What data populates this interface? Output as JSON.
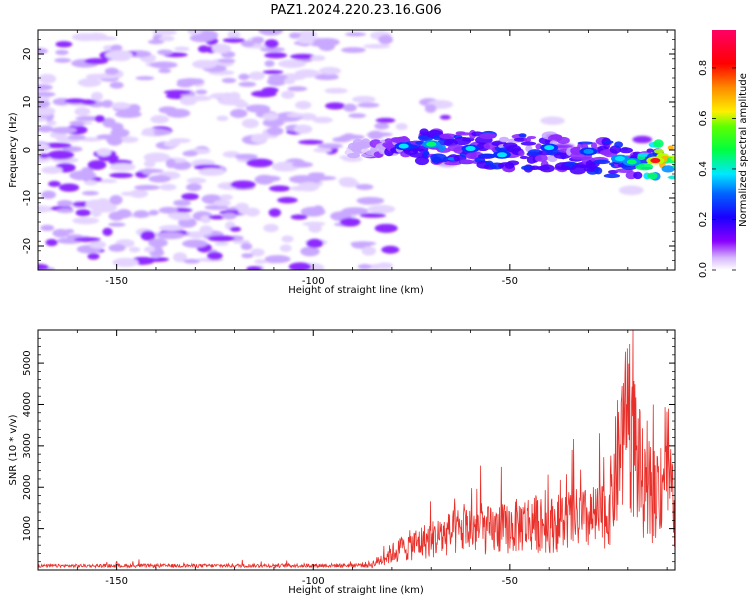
{
  "title": "PAZ1.2024.220.23.16.G06",
  "colors": {
    "background": "#ffffff",
    "snr_line": "#e8302a",
    "spectrogram_core": "#7a00ff",
    "spectrogram_faint": "#d9c2ff"
  },
  "chart_data": [
    {
      "type": "heatmap",
      "xlabel": "Height of straight line (km)",
      "ylabel": "Frequency (Hz)",
      "xlim": [
        -170,
        -8
      ],
      "ylim": [
        -25,
        25
      ],
      "xticks": [
        -150,
        -100,
        -50
      ],
      "yticks": [
        20,
        10,
        0,
        -10,
        -20
      ],
      "colorbar": {
        "label": "Normalized spectral amplitude",
        "range": [
          0.0,
          0.95
        ],
        "ticks": [
          0.0,
          0.2,
          0.4,
          0.6,
          0.8
        ],
        "colormap": "gist_rainbow (white→violet→blue→cyan→green→yellow→orange→red→magenta)"
      },
      "description_points": [
        {
          "x": -170,
          "y": 0,
          "amplitude": 0.15
        },
        {
          "x": -90,
          "y": 0,
          "amplitude": 0.15
        },
        {
          "x": -80,
          "y": 0.5,
          "amplitude": 0.3
        },
        {
          "x": -70,
          "y": 1.2,
          "amplitude": 0.45
        },
        {
          "x": -60,
          "y": 0.5,
          "amplitude": 0.4
        },
        {
          "x": -50,
          "y": -0.5,
          "amplitude": 0.4
        },
        {
          "x": -40,
          "y": -0.5,
          "amplitude": 0.38
        },
        {
          "x": -30,
          "y": -1.5,
          "amplitude": 0.4
        },
        {
          "x": -20,
          "y": -2.0,
          "amplitude": 0.45
        },
        {
          "x": -12,
          "y": -2.2,
          "amplitude": 0.85
        }
      ]
    },
    {
      "type": "line",
      "xlabel": "Height of straight line (km)",
      "ylabel": "SNR (10 * v/v)",
      "xlim": [
        -170,
        -8
      ],
      "ylim": [
        0,
        5800
      ],
      "xticks": [
        -150,
        -100,
        -50
      ],
      "yticks": [
        1000,
        2000,
        3000,
        4000,
        5000
      ],
      "series": [
        {
          "values_envelope": [
            {
              "x": -170,
              "y": 120
            },
            {
              "x": -120,
              "y": 130
            },
            {
              "x": -90,
              "y": 140
            },
            {
              "x": -85,
              "y": 200
            },
            {
              "x": -80,
              "y": 600
            },
            {
              "x": -75,
              "y": 900
            },
            {
              "x": -70,
              "y": 1100
            },
            {
              "x": -65,
              "y": 1300
            },
            {
              "x": -60,
              "y": 1500
            },
            {
              "x": -55,
              "y": 1400
            },
            {
              "x": -50,
              "y": 1500
            },
            {
              "x": -45,
              "y": 1700
            },
            {
              "x": -40,
              "y": 1600
            },
            {
              "x": -35,
              "y": 1800
            },
            {
              "x": -30,
              "y": 1800
            },
            {
              "x": -25,
              "y": 2000
            },
            {
              "x": -20,
              "y": 5800
            },
            {
              "x": -15,
              "y": 2200
            },
            {
              "x": -12,
              "y": 3000
            },
            {
              "x": -10,
              "y": 4200
            },
            {
              "x": -8,
              "y": 1500
            }
          ]
        }
      ]
    }
  ]
}
